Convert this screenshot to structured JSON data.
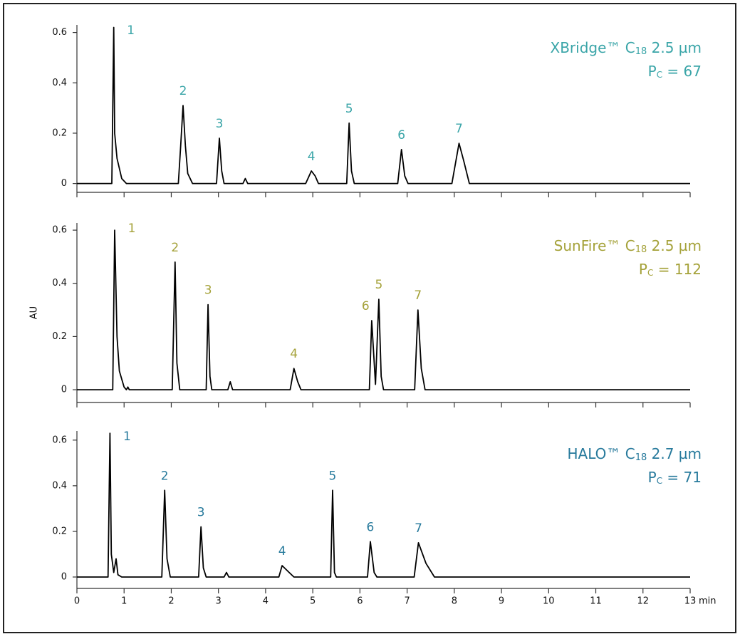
{
  "chart_data": [
    {
      "type": "line",
      "color": "#000000",
      "label_color": "#3aa5a8",
      "column": {
        "name": "XBridge™ C",
        "sub": "18",
        "size": " 2.5 µm"
      },
      "pc": {
        "name": "P",
        "sub": "C",
        "value": " = 67"
      },
      "x": [
        0,
        0.74,
        0.78,
        0.8,
        0.85,
        0.95,
        1.05,
        2.15,
        2.2,
        2.25,
        2.3,
        2.35,
        2.45,
        2.96,
        3.02,
        3.07,
        3.12,
        3.52,
        3.57,
        3.62,
        4.85,
        4.97,
        5.05,
        5.12,
        5.72,
        5.77,
        5.82,
        5.88,
        6.8,
        6.88,
        6.95,
        7.02,
        7.95,
        8.1,
        8.2,
        8.32,
        13
      ],
      "values": [
        0,
        0,
        0.62,
        0.2,
        0.1,
        0.02,
        0,
        0,
        0.15,
        0.31,
        0.15,
        0.04,
        0,
        0,
        0.18,
        0.05,
        0,
        0,
        0.02,
        0,
        0,
        0.05,
        0.03,
        0,
        0,
        0.24,
        0.05,
        0,
        0,
        0.135,
        0.03,
        0,
        0,
        0.16,
        0.09,
        0,
        0
      ],
      "peaks": [
        {
          "label": "1",
          "x": 0.78,
          "y": 0.62
        },
        {
          "label": "2",
          "x": 2.25,
          "y": 0.31
        },
        {
          "label": "3",
          "x": 3.02,
          "y": 0.18
        },
        {
          "label": "4",
          "x": 4.97,
          "y": 0.05
        },
        {
          "label": "5",
          "x": 5.77,
          "y": 0.24
        },
        {
          "label": "6",
          "x": 6.88,
          "y": 0.135
        },
        {
          "label": "7",
          "x": 8.1,
          "y": 0.16
        }
      ],
      "xlim": [
        0,
        13
      ],
      "xticks": [
        0,
        1,
        2,
        3,
        4,
        5,
        6,
        7,
        8,
        9,
        10,
        11,
        12,
        13
      ],
      "ylim": [
        -0.035,
        0.63
      ],
      "yticks": [
        0,
        0.2,
        0.4,
        0.6
      ]
    },
    {
      "type": "line",
      "color": "#000000",
      "label_color": "#a5a23a",
      "y_label": "AU",
      "column": {
        "name": "SunFire™ C",
        "sub": "18",
        "size": " 2.5 µm"
      },
      "pc": {
        "name": "P",
        "sub": "C",
        "value": " = 112"
      },
      "x": [
        0,
        0.76,
        0.8,
        0.85,
        0.9,
        0.95,
        1.0,
        1.05,
        1.08,
        1.11,
        2.02,
        2.08,
        2.12,
        2.18,
        2.74,
        2.78,
        2.82,
        2.86,
        3.2,
        3.25,
        3.3,
        4.52,
        4.6,
        4.68,
        4.75,
        6.2,
        6.25,
        6.33,
        6.4,
        6.45,
        6.5,
        7.16,
        7.23,
        7.3,
        7.38,
        13
      ],
      "values": [
        0,
        0,
        0.6,
        0.2,
        0.07,
        0.04,
        0.01,
        0,
        0.01,
        0,
        0,
        0.48,
        0.1,
        0,
        0,
        0.32,
        0.05,
        0,
        0,
        0.03,
        0,
        0,
        0.08,
        0.03,
        0,
        0,
        0.26,
        0.02,
        0.34,
        0.05,
        0,
        0,
        0.3,
        0.08,
        0,
        0
      ],
      "peaks": [
        {
          "label": "1",
          "x": 0.8,
          "y": 0.6
        },
        {
          "label": "2",
          "x": 2.08,
          "y": 0.48
        },
        {
          "label": "3",
          "x": 2.78,
          "y": 0.32
        },
        {
          "label": "4",
          "x": 4.6,
          "y": 0.08
        },
        {
          "label": "6",
          "x": 6.12,
          "y": 0.26
        },
        {
          "label": "5",
          "x": 6.4,
          "y": 0.34
        },
        {
          "label": "7",
          "x": 7.23,
          "y": 0.3
        }
      ],
      "xlim": [
        0,
        13
      ],
      "xticks": [
        0,
        1,
        2,
        3,
        4,
        5,
        6,
        7,
        8,
        9,
        10,
        11,
        12,
        13
      ],
      "ylim": [
        -0.048,
        0.627
      ],
      "yticks": [
        0,
        0.2,
        0.4,
        0.6
      ]
    },
    {
      "type": "line",
      "color": "#000000",
      "label_color": "#277a9c",
      "x_label": "min",
      "column": {
        "name": "HALO™ C",
        "sub": "18",
        "size": " 2.7 µm"
      },
      "pc": {
        "name": "P",
        "sub": "C",
        "value": " = 71"
      },
      "x": [
        0,
        0.66,
        0.7,
        0.73,
        0.78,
        0.83,
        0.87,
        0.95,
        1.8,
        1.86,
        1.91,
        1.98,
        2.58,
        2.63,
        2.68,
        2.74,
        3.12,
        3.17,
        3.22,
        4.28,
        4.35,
        4.5,
        4.6,
        5.38,
        5.42,
        5.46,
        5.5,
        6.16,
        6.22,
        6.3,
        6.36,
        7.15,
        7.24,
        7.4,
        7.58,
        13
      ],
      "values": [
        0,
        0,
        0.63,
        0.1,
        0.02,
        0.08,
        0.01,
        0,
        0,
        0.38,
        0.08,
        0,
        0,
        0.22,
        0.04,
        0,
        0,
        0.02,
        0,
        0,
        0.05,
        0.02,
        0,
        0,
        0.38,
        0.02,
        0,
        0,
        0.155,
        0.02,
        0,
        0,
        0.15,
        0.06,
        0,
        0
      ],
      "peaks": [
        {
          "label": "1",
          "x": 0.7,
          "y": 0.63
        },
        {
          "label": "2",
          "x": 1.86,
          "y": 0.38
        },
        {
          "label": "3",
          "x": 2.63,
          "y": 0.22
        },
        {
          "label": "4",
          "x": 4.35,
          "y": 0.05
        },
        {
          "label": "5",
          "x": 5.42,
          "y": 0.38
        },
        {
          "label": "6",
          "x": 6.22,
          "y": 0.155
        },
        {
          "label": "7",
          "x": 7.24,
          "y": 0.15
        }
      ],
      "xlim": [
        0,
        13
      ],
      "xticks": [
        0,
        1,
        2,
        3,
        4,
        5,
        6,
        7,
        8,
        9,
        10,
        11,
        12,
        13
      ],
      "ylim": [
        -0.05,
        0.64
      ],
      "yticks": [
        0,
        0.2,
        0.4,
        0.6
      ]
    }
  ]
}
